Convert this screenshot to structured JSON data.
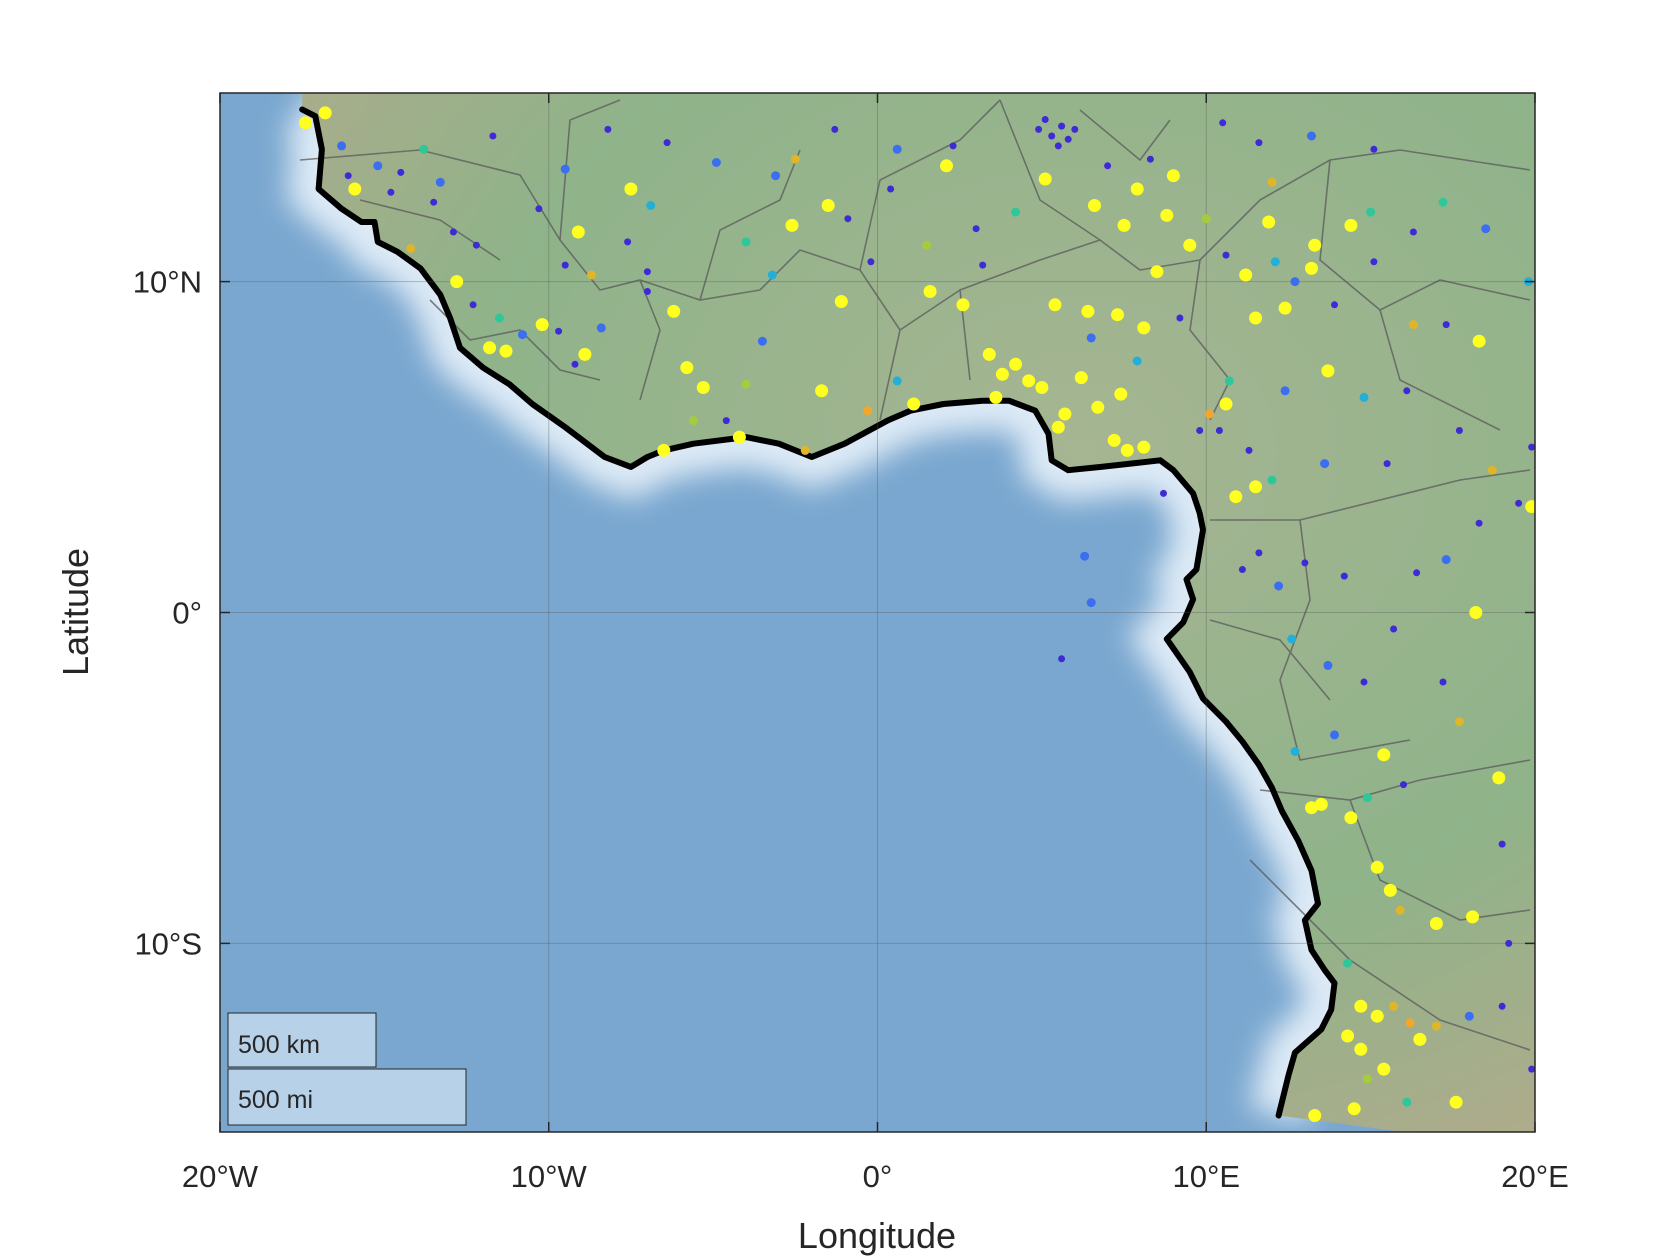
{
  "map": {
    "xlabel": "Longitude",
    "ylabel": "Latitude",
    "lon_range": [
      -20,
      20
    ],
    "lat_range": [
      -15.7,
      15.7
    ],
    "lon_ticks": [
      {
        "value": -20,
        "label": "20°W"
      },
      {
        "value": -10,
        "label": "10°W"
      },
      {
        "value": 0,
        "label": "0°"
      },
      {
        "value": 10,
        "label": "10°E"
      },
      {
        "value": 20,
        "label": "20°E"
      }
    ],
    "lat_ticks": [
      {
        "value": 10,
        "label": "10°N"
      },
      {
        "value": 0,
        "label": "0°"
      },
      {
        "value": -10,
        "label": "10°S"
      }
    ],
    "scale_bar": {
      "km_label": "500 km",
      "mi_label": "500 mi"
    },
    "coastline_color": "#000000",
    "ocean_color": "#7aa7cf",
    "land_color": "#93b38e",
    "point_colors": [
      "#3f2bd6",
      "#3b6ef0",
      "#22b0d8",
      "#2fc79a",
      "#a6cc3c",
      "#e0b52a",
      "#f5a629",
      "#ffff20"
    ],
    "coastline": [
      [
        -17.5,
        15.2
      ],
      [
        -17.1,
        15.0
      ],
      [
        -16.9,
        14.0
      ],
      [
        -17.0,
        12.8
      ],
      [
        -16.3,
        12.2
      ],
      [
        -15.7,
        11.8
      ],
      [
        -15.3,
        11.8
      ],
      [
        -15.2,
        11.2
      ],
      [
        -14.6,
        10.9
      ],
      [
        -13.9,
        10.4
      ],
      [
        -13.3,
        9.6
      ],
      [
        -13.0,
        8.9
      ],
      [
        -12.7,
        8.0
      ],
      [
        -12.0,
        7.4
      ],
      [
        -11.2,
        6.9
      ],
      [
        -10.5,
        6.3
      ],
      [
        -9.5,
        5.6
      ],
      [
        -8.3,
        4.7
      ],
      [
        -7.5,
        4.4
      ],
      [
        -7.0,
        4.7
      ],
      [
        -6.5,
        4.9
      ],
      [
        -5.6,
        5.1
      ],
      [
        -4.0,
        5.3
      ],
      [
        -3.0,
        5.1
      ],
      [
        -2.0,
        4.7
      ],
      [
        -1.0,
        5.1
      ],
      [
        0.3,
        5.8
      ],
      [
        1.0,
        6.1
      ],
      [
        2.0,
        6.3
      ],
      [
        3.2,
        6.4
      ],
      [
        4.0,
        6.4
      ],
      [
        4.8,
        6.1
      ],
      [
        5.2,
        5.4
      ],
      [
        5.3,
        4.6
      ],
      [
        5.8,
        4.3
      ],
      [
        6.8,
        4.4
      ],
      [
        7.7,
        4.5
      ],
      [
        8.6,
        4.6
      ],
      [
        9.0,
        4.3
      ],
      [
        9.6,
        3.6
      ],
      [
        9.8,
        3.0
      ],
      [
        9.9,
        2.5
      ],
      [
        9.7,
        1.3
      ],
      [
        9.4,
        1.0
      ],
      [
        9.6,
        0.4
      ],
      [
        9.3,
        -0.3
      ],
      [
        8.8,
        -0.8
      ],
      [
        9.5,
        -1.8
      ],
      [
        9.9,
        -2.6
      ],
      [
        10.6,
        -3.3
      ],
      [
        11.1,
        -3.9
      ],
      [
        11.6,
        -4.6
      ],
      [
        12.0,
        -5.3
      ],
      [
        12.3,
        -6.0
      ],
      [
        12.8,
        -6.9
      ],
      [
        13.2,
        -7.8
      ],
      [
        13.4,
        -8.8
      ],
      [
        13.0,
        -9.3
      ],
      [
        13.2,
        -10.2
      ],
      [
        13.6,
        -10.8
      ],
      [
        13.9,
        -11.2
      ],
      [
        13.8,
        -12.0
      ],
      [
        13.5,
        -12.6
      ],
      [
        12.7,
        -13.3
      ],
      [
        12.5,
        -14.0
      ],
      [
        12.2,
        -15.2
      ]
    ],
    "points": [
      {
        "lon": -17.4,
        "lat": 14.8,
        "c": 7
      },
      {
        "lon": -16.8,
        "lat": 15.1,
        "c": 7
      },
      {
        "lon": -16.3,
        "lat": 14.1,
        "c": 1
      },
      {
        "lon": -16.1,
        "lat": 13.2,
        "c": 0
      },
      {
        "lon": -15.9,
        "lat": 12.8,
        "c": 7
      },
      {
        "lon": -15.2,
        "lat": 13.5,
        "c": 1
      },
      {
        "lon": -14.5,
        "lat": 13.3,
        "c": 0
      },
      {
        "lon": -13.8,
        "lat": 14.0,
        "c": 3
      },
      {
        "lon": -14.8,
        "lat": 12.7,
        "c": 0
      },
      {
        "lon": -13.5,
        "lat": 12.4,
        "c": 0
      },
      {
        "lon": -14.2,
        "lat": 11.0,
        "c": 5
      },
      {
        "lon": -12.9,
        "lat": 11.5,
        "c": 0
      },
      {
        "lon": -12.2,
        "lat": 11.1,
        "c": 0
      },
      {
        "lon": -12.8,
        "lat": 10.0,
        "c": 7
      },
      {
        "lon": -12.3,
        "lat": 9.3,
        "c": 0
      },
      {
        "lon": -11.5,
        "lat": 8.9,
        "c": 3
      },
      {
        "lon": -11.8,
        "lat": 8.0,
        "c": 7
      },
      {
        "lon": -11.3,
        "lat": 7.9,
        "c": 7
      },
      {
        "lon": -10.8,
        "lat": 8.4,
        "c": 1
      },
      {
        "lon": -10.2,
        "lat": 8.7,
        "c": 7
      },
      {
        "lon": -9.7,
        "lat": 8.5,
        "c": 0
      },
      {
        "lon": -9.2,
        "lat": 7.5,
        "c": 0
      },
      {
        "lon": -8.9,
        "lat": 7.8,
        "c": 7
      },
      {
        "lon": -8.4,
        "lat": 8.6,
        "c": 1
      },
      {
        "lon": -9.5,
        "lat": 10.5,
        "c": 0
      },
      {
        "lon": -8.7,
        "lat": 10.2,
        "c": 5
      },
      {
        "lon": -9.1,
        "lat": 11.5,
        "c": 7
      },
      {
        "lon": -7.5,
        "lat": 12.8,
        "c": 7
      },
      {
        "lon": -7.6,
        "lat": 11.2,
        "c": 0
      },
      {
        "lon": -7.0,
        "lat": 10.3,
        "c": 0
      },
      {
        "lon": -6.2,
        "lat": 9.1,
        "c": 7
      },
      {
        "lon": -5.8,
        "lat": 7.4,
        "c": 7
      },
      {
        "lon": -5.3,
        "lat": 6.8,
        "c": 7
      },
      {
        "lon": -5.6,
        "lat": 5.8,
        "c": 4
      },
      {
        "lon": -4.6,
        "lat": 5.8,
        "c": 0
      },
      {
        "lon": -4.0,
        "lat": 6.9,
        "c": 4
      },
      {
        "lon": -3.5,
        "lat": 8.2,
        "c": 1
      },
      {
        "lon": -3.2,
        "lat": 10.2,
        "c": 2
      },
      {
        "lon": -2.6,
        "lat": 11.7,
        "c": 7
      },
      {
        "lon": -2.5,
        "lat": 13.7,
        "c": 5
      },
      {
        "lon": -1.5,
        "lat": 12.3,
        "c": 7
      },
      {
        "lon": -0.9,
        "lat": 11.9,
        "c": 0
      },
      {
        "lon": -0.2,
        "lat": 10.6,
        "c": 0
      },
      {
        "lon": -1.1,
        "lat": 9.4,
        "c": 7
      },
      {
        "lon": -1.7,
        "lat": 6.7,
        "c": 7
      },
      {
        "lon": -0.3,
        "lat": 6.1,
        "c": 6
      },
      {
        "lon": 0.6,
        "lat": 7.0,
        "c": 2
      },
      {
        "lon": 1.1,
        "lat": 6.3,
        "c": 7
      },
      {
        "lon": 1.6,
        "lat": 9.7,
        "c": 7
      },
      {
        "lon": 2.1,
        "lat": 13.5,
        "c": 7
      },
      {
        "lon": 2.6,
        "lat": 9.3,
        "c": 7
      },
      {
        "lon": 3.4,
        "lat": 7.8,
        "c": 7
      },
      {
        "lon": 3.8,
        "lat": 7.2,
        "c": 7
      },
      {
        "lon": 4.2,
        "lat": 7.5,
        "c": 7
      },
      {
        "lon": 4.6,
        "lat": 7.0,
        "c": 7
      },
      {
        "lon": 5.0,
        "lat": 6.8,
        "c": 7
      },
      {
        "lon": 3.6,
        "lat": 6.5,
        "c": 7
      },
      {
        "lon": 5.5,
        "lat": 5.6,
        "c": 7
      },
      {
        "lon": 5.7,
        "lat": 6.0,
        "c": 7
      },
      {
        "lon": 6.7,
        "lat": 6.2,
        "c": 7
      },
      {
        "lon": 7.2,
        "lat": 5.2,
        "c": 7
      },
      {
        "lon": 7.6,
        "lat": 4.9,
        "c": 7
      },
      {
        "lon": 8.1,
        "lat": 5.0,
        "c": 7
      },
      {
        "lon": 7.4,
        "lat": 6.6,
        "c": 7
      },
      {
        "lon": 6.2,
        "lat": 7.1,
        "c": 7
      },
      {
        "lon": 6.5,
        "lat": 8.3,
        "c": 1
      },
      {
        "lon": 5.4,
        "lat": 9.3,
        "c": 7
      },
      {
        "lon": 6.4,
        "lat": 9.1,
        "c": 7
      },
      {
        "lon": 7.3,
        "lat": 9.0,
        "c": 7
      },
      {
        "lon": 8.1,
        "lat": 8.6,
        "c": 7
      },
      {
        "lon": 8.5,
        "lat": 10.3,
        "c": 7
      },
      {
        "lon": 7.5,
        "lat": 11.7,
        "c": 7
      },
      {
        "lon": 6.6,
        "lat": 12.3,
        "c": 7
      },
      {
        "lon": 7.9,
        "lat": 12.8,
        "c": 7
      },
      {
        "lon": 8.8,
        "lat": 12.0,
        "c": 7
      },
      {
        "lon": 9.5,
        "lat": 11.1,
        "c": 7
      },
      {
        "lon": 5.1,
        "lat": 13.1,
        "c": 7
      },
      {
        "lon": 4.9,
        "lat": 14.6,
        "c": 0
      },
      {
        "lon": 5.3,
        "lat": 14.4,
        "c": 0
      },
      {
        "lon": 5.6,
        "lat": 14.7,
        "c": 0
      },
      {
        "lon": 5.8,
        "lat": 14.3,
        "c": 0
      },
      {
        "lon": 6.0,
        "lat": 14.6,
        "c": 0
      },
      {
        "lon": 5.1,
        "lat": 14.9,
        "c": 0
      },
      {
        "lon": 5.5,
        "lat": 14.1,
        "c": 0
      },
      {
        "lon": 7.0,
        "lat": 13.5,
        "c": 0
      },
      {
        "lon": 8.3,
        "lat": 13.7,
        "c": 0
      },
      {
        "lon": 9.0,
        "lat": 13.2,
        "c": 7
      },
      {
        "lon": 10.0,
        "lat": 11.9,
        "c": 4
      },
      {
        "lon": 10.6,
        "lat": 10.8,
        "c": 0
      },
      {
        "lon": 11.2,
        "lat": 10.2,
        "c": 7
      },
      {
        "lon": 11.9,
        "lat": 11.8,
        "c": 7
      },
      {
        "lon": 12.1,
        "lat": 10.6,
        "c": 2
      },
      {
        "lon": 12.7,
        "lat": 10.0,
        "c": 1
      },
      {
        "lon": 13.3,
        "lat": 11.1,
        "c": 7
      },
      {
        "lon": 13.2,
        "lat": 10.4,
        "c": 7
      },
      {
        "lon": 14.4,
        "lat": 11.7,
        "c": 7
      },
      {
        "lon": 15.0,
        "lat": 12.1,
        "c": 3
      },
      {
        "lon": 15.1,
        "lat": 10.6,
        "c": 0
      },
      {
        "lon": 13.9,
        "lat": 9.3,
        "c": 0
      },
      {
        "lon": 12.4,
        "lat": 9.2,
        "c": 7
      },
      {
        "lon": 11.5,
        "lat": 8.9,
        "c": 7
      },
      {
        "lon": 10.7,
        "lat": 7.0,
        "c": 3
      },
      {
        "lon": 10.1,
        "lat": 6.0,
        "c": 6
      },
      {
        "lon": 10.4,
        "lat": 5.5,
        "c": 0
      },
      {
        "lon": 11.3,
        "lat": 4.9,
        "c": 0
      },
      {
        "lon": 11.5,
        "lat": 3.8,
        "c": 7
      },
      {
        "lon": 10.9,
        "lat": 3.5,
        "c": 7
      },
      {
        "lon": 12.0,
        "lat": 4.0,
        "c": 3
      },
      {
        "lon": 13.6,
        "lat": 4.5,
        "c": 1
      },
      {
        "lon": 13.7,
        "lat": 7.3,
        "c": 7
      },
      {
        "lon": 14.8,
        "lat": 6.5,
        "c": 2
      },
      {
        "lon": 15.5,
        "lat": 4.5,
        "c": 0
      },
      {
        "lon": 16.3,
        "lat": 8.7,
        "c": 5
      },
      {
        "lon": 17.3,
        "lat": 8.7,
        "c": 0
      },
      {
        "lon": 18.3,
        "lat": 8.2,
        "c": 7
      },
      {
        "lon": 18.7,
        "lat": 4.3,
        "c": 5
      },
      {
        "lon": 19.5,
        "lat": 3.3,
        "c": 0
      },
      {
        "lon": 19.9,
        "lat": 3.2,
        "c": 7
      },
      {
        "lon": 18.3,
        "lat": 2.7,
        "c": 0
      },
      {
        "lon": 17.3,
        "lat": 1.6,
        "c": 1
      },
      {
        "lon": 16.4,
        "lat": 1.2,
        "c": 0
      },
      {
        "lon": 18.2,
        "lat": 0.0,
        "c": 7
      },
      {
        "lon": 15.7,
        "lat": -0.5,
        "c": 0
      },
      {
        "lon": 14.2,
        "lat": 1.1,
        "c": 0
      },
      {
        "lon": 13.0,
        "lat": 1.5,
        "c": 0
      },
      {
        "lon": 11.6,
        "lat": 1.8,
        "c": 0
      },
      {
        "lon": 11.1,
        "lat": 1.3,
        "c": 0
      },
      {
        "lon": 12.2,
        "lat": 0.8,
        "c": 1
      },
      {
        "lon": 12.6,
        "lat": -0.8,
        "c": 2
      },
      {
        "lon": 13.7,
        "lat": -1.6,
        "c": 1
      },
      {
        "lon": 14.8,
        "lat": -2.1,
        "c": 0
      },
      {
        "lon": 15.4,
        "lat": -4.3,
        "c": 7
      },
      {
        "lon": 16.0,
        "lat": -5.2,
        "c": 0
      },
      {
        "lon": 14.9,
        "lat": -5.6,
        "c": 3
      },
      {
        "lon": 13.5,
        "lat": -5.8,
        "c": 7
      },
      {
        "lon": 13.2,
        "lat": -5.9,
        "c": 7
      },
      {
        "lon": 14.4,
        "lat": -6.2,
        "c": 7
      },
      {
        "lon": 15.2,
        "lat": -7.7,
        "c": 7
      },
      {
        "lon": 15.6,
        "lat": -8.4,
        "c": 7
      },
      {
        "lon": 15.9,
        "lat": -9.0,
        "c": 5
      },
      {
        "lon": 17.0,
        "lat": -9.4,
        "c": 7
      },
      {
        "lon": 18.1,
        "lat": -9.2,
        "c": 7
      },
      {
        "lon": 19.2,
        "lat": -10.0,
        "c": 0
      },
      {
        "lon": 19.0,
        "lat": -7.0,
        "c": 0
      },
      {
        "lon": 18.9,
        "lat": -5.0,
        "c": 7
      },
      {
        "lon": 17.7,
        "lat": -3.3,
        "c": 5
      },
      {
        "lon": 14.3,
        "lat": -10.6,
        "c": 3
      },
      {
        "lon": 14.7,
        "lat": -11.9,
        "c": 7
      },
      {
        "lon": 15.2,
        "lat": -12.2,
        "c": 7
      },
      {
        "lon": 15.7,
        "lat": -11.9,
        "c": 5
      },
      {
        "lon": 16.2,
        "lat": -12.4,
        "c": 6
      },
      {
        "lon": 16.5,
        "lat": -12.9,
        "c": 7
      },
      {
        "lon": 17.0,
        "lat": -12.5,
        "c": 5
      },
      {
        "lon": 18.0,
        "lat": -12.2,
        "c": 1
      },
      {
        "lon": 14.3,
        "lat": -12.8,
        "c": 7
      },
      {
        "lon": 14.7,
        "lat": -13.2,
        "c": 7
      },
      {
        "lon": 15.4,
        "lat": -13.8,
        "c": 7
      },
      {
        "lon": 14.9,
        "lat": -14.1,
        "c": 4
      },
      {
        "lon": 16.1,
        "lat": -14.8,
        "c": 3
      },
      {
        "lon": 17.6,
        "lat": -14.8,
        "c": 7
      },
      {
        "lon": 14.5,
        "lat": -15.0,
        "c": 7
      },
      {
        "lon": 13.3,
        "lat": -15.2,
        "c": 7
      },
      {
        "lon": 19.9,
        "lat": -13.8,
        "c": 0
      },
      {
        "lon": 19.0,
        "lat": -11.9,
        "c": 0
      },
      {
        "lon": 19.9,
        "lat": 5.0,
        "c": 0
      },
      {
        "lon": 19.8,
        "lat": 10.0,
        "c": 2
      },
      {
        "lon": 18.5,
        "lat": 11.6,
        "c": 1
      },
      {
        "lon": 17.2,
        "lat": 12.4,
        "c": 3
      },
      {
        "lon": 16.3,
        "lat": 11.5,
        "c": 0
      },
      {
        "lon": 15.1,
        "lat": 14.0,
        "c": 0
      },
      {
        "lon": 13.2,
        "lat": 14.4,
        "c": 1
      },
      {
        "lon": 11.6,
        "lat": 14.2,
        "c": 0
      },
      {
        "lon": 10.5,
        "lat": 14.8,
        "c": 0
      },
      {
        "lon": 12.0,
        "lat": 13.0,
        "c": 5
      },
      {
        "lon": 2.3,
        "lat": 14.1,
        "c": 0
      },
      {
        "lon": 0.6,
        "lat": 14.0,
        "c": 1
      },
      {
        "lon": 0.4,
        "lat": 12.8,
        "c": 0
      },
      {
        "lon": -1.3,
        "lat": 14.6,
        "c": 0
      },
      {
        "lon": -3.1,
        "lat": 13.2,
        "c": 1
      },
      {
        "lon": -4.9,
        "lat": 13.6,
        "c": 1
      },
      {
        "lon": -6.4,
        "lat": 14.2,
        "c": 0
      },
      {
        "lon": -8.2,
        "lat": 14.6,
        "c": 0
      },
      {
        "lon": -9.5,
        "lat": 13.4,
        "c": 1
      },
      {
        "lon": -10.3,
        "lat": 12.2,
        "c": 0
      },
      {
        "lon": -11.7,
        "lat": 14.4,
        "c": 0
      },
      {
        "lon": -13.3,
        "lat": 13.0,
        "c": 1
      },
      {
        "lon": 1.5,
        "lat": 11.1,
        "c": 4
      },
      {
        "lon": 3.0,
        "lat": 11.6,
        "c": 0
      },
      {
        "lon": 4.2,
        "lat": 12.1,
        "c": 3
      },
      {
        "lon": 6.3,
        "lat": 1.7,
        "c": 1
      },
      {
        "lon": 6.5,
        "lat": 0.3,
        "c": 1
      },
      {
        "lon": 5.6,
        "lat": -1.4,
        "c": 0
      },
      {
        "lon": 8.7,
        "lat": 3.6,
        "c": 0
      },
      {
        "lon": 9.8,
        "lat": 5.5,
        "c": 0
      },
      {
        "lon": 10.6,
        "lat": 6.3,
        "c": 7
      },
      {
        "lon": -6.5,
        "lat": 4.9,
        "c": 7
      },
      {
        "lon": -4.2,
        "lat": 5.3,
        "c": 7
      },
      {
        "lon": -2.2,
        "lat": 4.9,
        "c": 5
      },
      {
        "lon": -7.0,
        "lat": 9.7,
        "c": 0
      },
      {
        "lon": -6.9,
        "lat": 12.3,
        "c": 2
      },
      {
        "lon": -4.0,
        "lat": 11.2,
        "c": 3
      },
      {
        "lon": 3.2,
        "lat": 10.5,
        "c": 0
      },
      {
        "lon": 7.9,
        "lat": 7.6,
        "c": 2
      },
      {
        "lon": 9.2,
        "lat": 8.9,
        "c": 0
      },
      {
        "lon": 12.4,
        "lat": 6.7,
        "c": 1
      },
      {
        "lon": 16.1,
        "lat": 6.7,
        "c": 0
      },
      {
        "lon": 17.7,
        "lat": 5.5,
        "c": 0
      },
      {
        "lon": 13.9,
        "lat": -3.7,
        "c": 1
      },
      {
        "lon": 12.7,
        "lat": -4.2,
        "c": 2
      },
      {
        "lon": 17.2,
        "lat": -2.1,
        "c": 0
      }
    ]
  }
}
